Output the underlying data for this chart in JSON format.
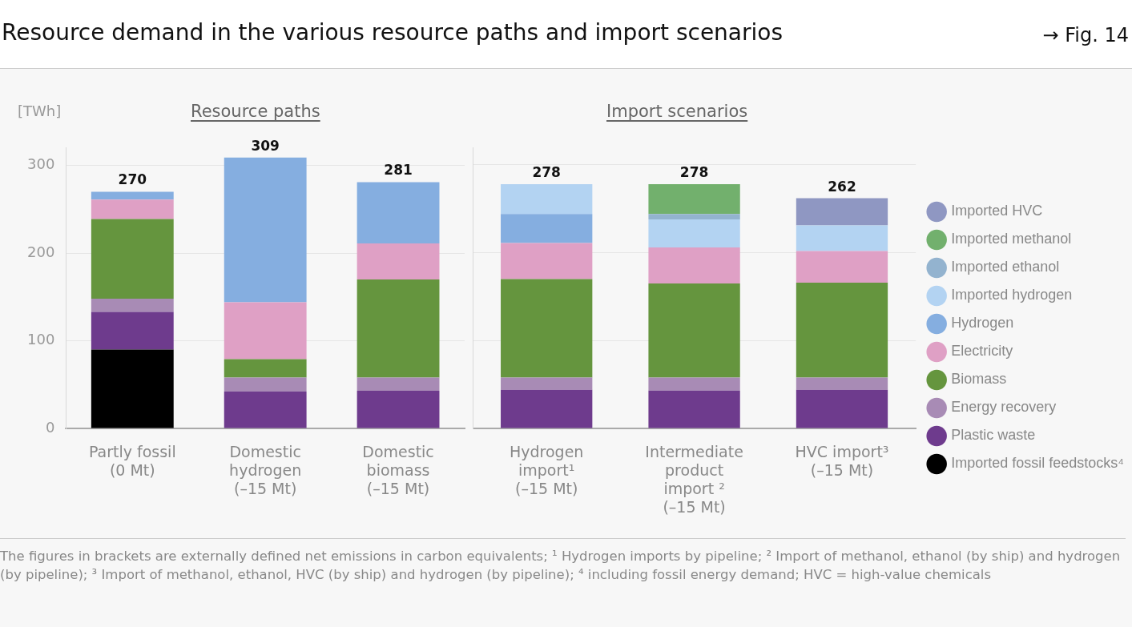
{
  "chart_data": [
    {
      "type": "bar",
      "title": "Resource demand in the various resource paths and import scenarios",
      "subtitle": "Resource paths",
      "ylabel": "[TWh]",
      "categories": [
        "Partly fossil (0 Mt)",
        "Domestic hydrogen (–15 Mt)",
        "Domestic biomass (–15 Mt)"
      ],
      "stacked": true,
      "ylim": [
        0,
        320
      ],
      "yticks": [
        0,
        100,
        200,
        300
      ],
      "grid": "y",
      "legend": false,
      "series": [
        {
          "color": "#000000",
          "values": [
            90,
            null,
            null
          ]
        },
        {
          "color": "#6e3b8d",
          "values": [
            43,
            42,
            43
          ]
        },
        {
          "color": "#a88bb5",
          "values": [
            15,
            16,
            15
          ]
        },
        {
          "color": "#65953e",
          "values": [
            91,
            21,
            112
          ]
        },
        {
          "color": "#dfa0c5",
          "values": [
            22,
            65,
            41
          ]
        },
        {
          "color": "#85aee0",
          "values": [
            9,
            165,
            70
          ]
        }
      ],
      "totals": [
        "270",
        "309",
        "281"
      ],
      "annotations": [
        "→ Fig. 14",
        "The figures in brackets are externally defined net emissions in carbon equivalents; ¹ Hydrogen imports by pipeline; ² Import of methanol, ethanol (by ship) and hydrogen (by pipeline); ³ Import of methanol, ethanol, HVC (by ship) and hydrogen (by pipeline); ⁴ including fossil energy demand; HVC = high-value chemicals"
      ]
    },
    {
      "type": "bar",
      "title": "Import scenarios",
      "categories": [
        "Hydrogen import¹ (–15 Mt)",
        "Intermediate product import ² (–15 Mt)",
        "HVC import³ (–15 Mt)"
      ],
      "stacked": true,
      "ylim": [
        0,
        320
      ],
      "yticks": [
        0,
        100,
        200,
        300
      ],
      "grid": "y",
      "legend": "right",
      "tick_labels": "x",
      "series": [
        {
          "name": "Imported fossil feedstocks⁴",
          "color": "#000000",
          "values": [
            null,
            null,
            null
          ]
        },
        {
          "name": "Plastic waste",
          "color": "#6e3b8d",
          "values": [
            44,
            43,
            44
          ]
        },
        {
          "name": "Energy recovery",
          "color": "#a88bb5",
          "values": [
            14,
            15,
            14
          ]
        },
        {
          "name": "Biomass",
          "color": "#65953e",
          "values": [
            112,
            107,
            108
          ]
        },
        {
          "name": "Electricity",
          "color": "#dfa0c5",
          "values": [
            41,
            41,
            36
          ]
        },
        {
          "name": "Hydrogen",
          "color": "#85aee0",
          "values": [
            33,
            null,
            null
          ]
        },
        {
          "name": "Imported hydrogen",
          "color": "#b3d3f2",
          "values": [
            34,
            32,
            29
          ]
        },
        {
          "name": "Imported ethanol",
          "color": "#93b3cf",
          "values": [
            null,
            6,
            null
          ]
        },
        {
          "name": "Imported methanol",
          "color": "#72b06d",
          "values": [
            null,
            34,
            null
          ]
        },
        {
          "name": "Imported HVC",
          "color": "#8f97c2",
          "values": [
            null,
            null,
            31
          ]
        }
      ],
      "totals": [
        "278",
        "278",
        "262"
      ]
    }
  ]
}
